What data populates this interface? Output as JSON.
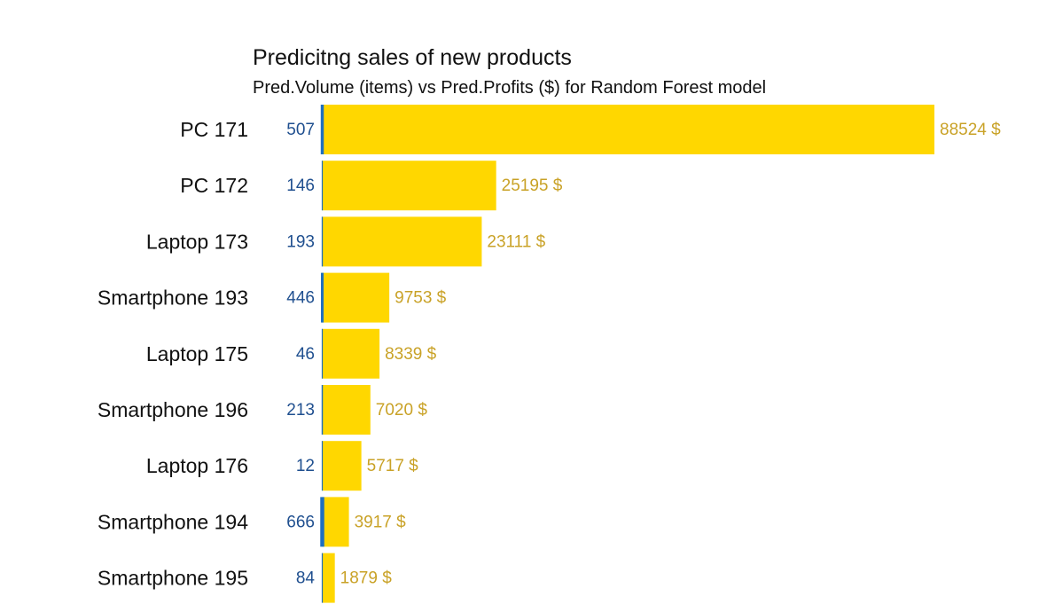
{
  "chart_data": {
    "type": "bar",
    "orientation": "horizontal",
    "title": "Predicitng sales of new products",
    "subtitle": "Pred.Volume (items) vs Pred.Profits ($) for Random Forest model",
    "xlabel": "",
    "ylabel": "",
    "grid": false,
    "legend": "none",
    "categories": [
      "PC 171",
      "PC 172",
      "Laptop 173",
      "Smartphone 193",
      "Laptop 175",
      "Smartphone 196",
      "Laptop 176",
      "Smartphone 194",
      "Smartphone 195"
    ],
    "series": [
      {
        "key": "volume",
        "values": [
          507,
          146,
          193,
          446,
          46,
          213,
          12,
          666,
          84
        ],
        "color": "#1f6fbf",
        "label_color": "#1f4f8f"
      },
      {
        "key": "profit",
        "values": [
          88524,
          25195,
          23111,
          9753,
          8339,
          7020,
          5717,
          3917,
          1879
        ],
        "unit_suffix": " $",
        "color": "#ffd700",
        "label_color": "#c9a227"
      }
    ]
  }
}
